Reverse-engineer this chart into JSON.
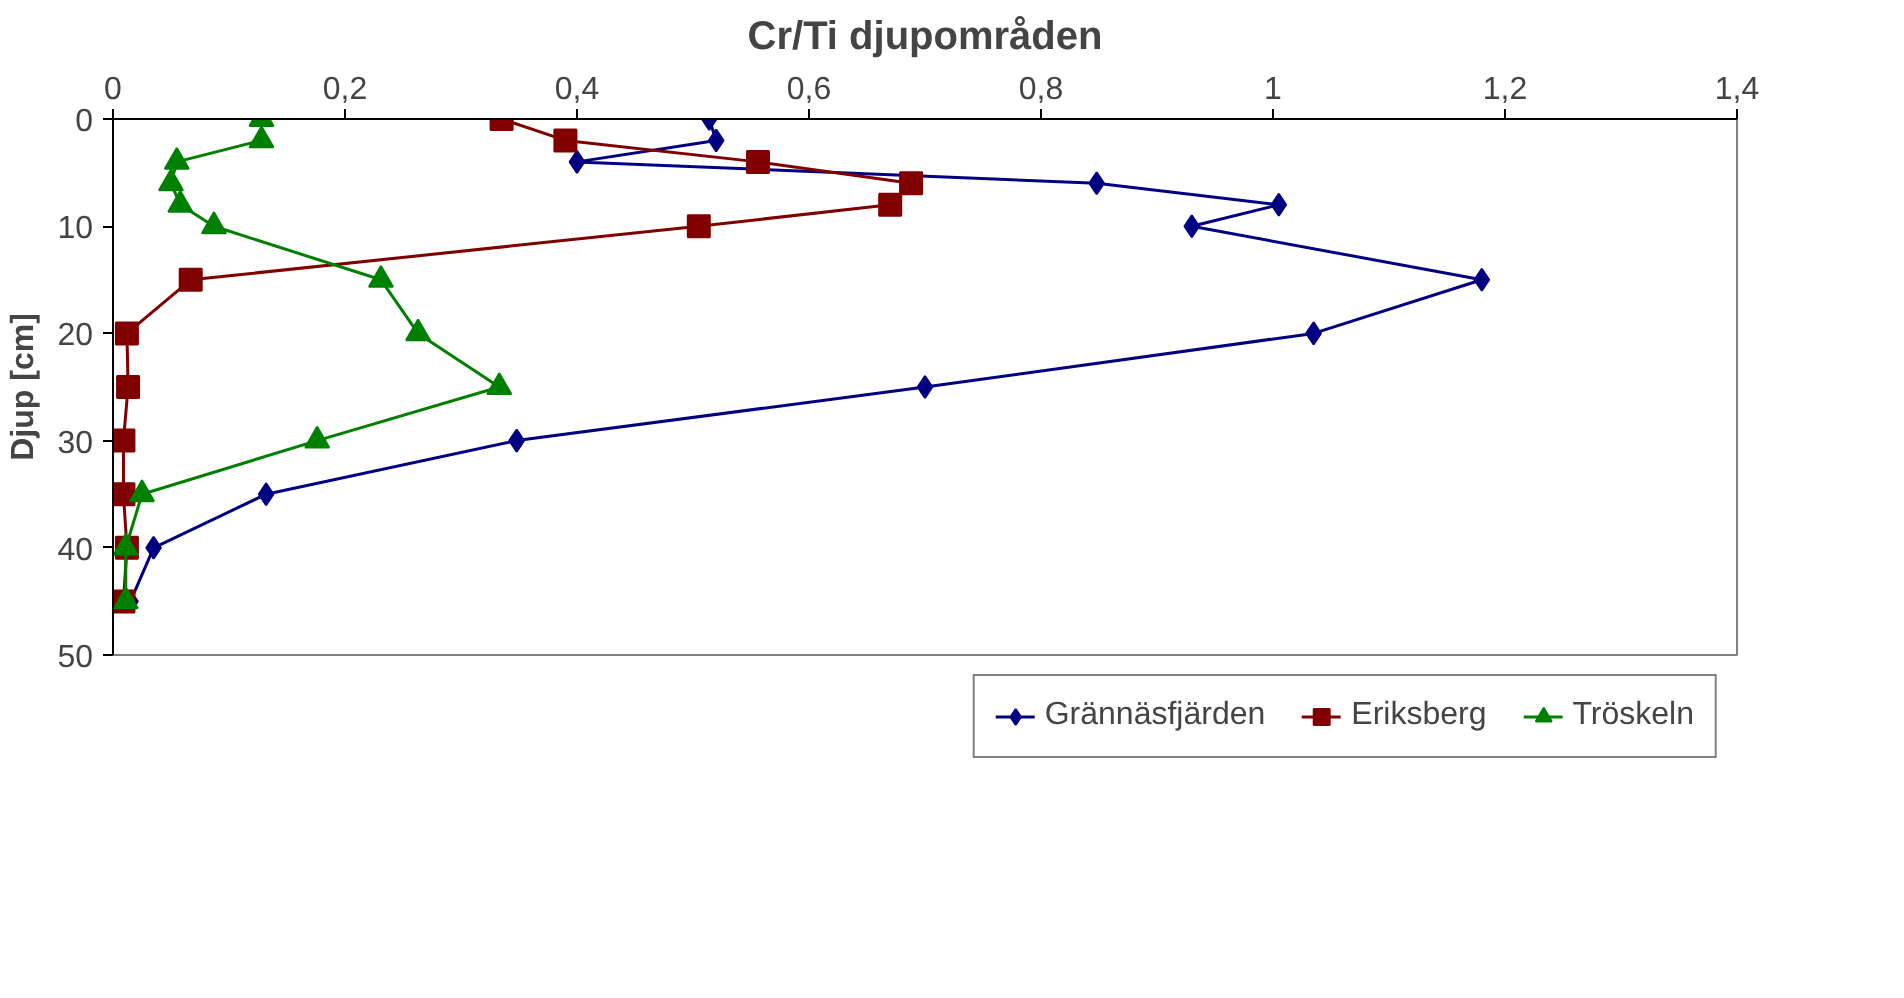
{
  "chart_data": {
    "type": "line",
    "title": "Cr/Ti djupområden",
    "ylabel": "Djup [cm]",
    "series": [
      {
        "name": "Grännäsfjärden",
        "color": "#000080",
        "marker": "diamond",
        "x": [
          0.514,
          0.52,
          0.4,
          0.848,
          1.005,
          0.93,
          1.18,
          1.035,
          0.7,
          0.348,
          0.132,
          0.035,
          0.015
        ],
        "values": [
          0,
          2,
          4,
          6,
          8,
          10,
          15,
          20,
          25,
          30,
          35,
          40,
          45
        ]
      },
      {
        "name": "Eriksberg",
        "color": "#800000",
        "marker": "square",
        "x": [
          0.335,
          0.39,
          0.556,
          0.688,
          0.67,
          0.505,
          0.067,
          0.012,
          0.013,
          0.009,
          0.009,
          0.012,
          0.009
        ],
        "values": [
          0,
          2,
          4,
          6,
          8,
          10,
          15,
          20,
          25,
          30,
          35,
          40,
          45
        ]
      },
      {
        "name": "Tröskeln",
        "color": "#008000",
        "marker": "triangle",
        "x": [
          0.128,
          0.128,
          0.055,
          0.05,
          0.058,
          0.087,
          0.231,
          0.263,
          0.333,
          0.176,
          0.025,
          0.011,
          0.011
        ],
        "values": [
          0,
          2,
          4,
          6,
          8,
          10,
          15,
          20,
          25,
          30,
          35,
          40,
          45
        ]
      }
    ],
    "xlim": [
      0,
      1.4
    ],
    "xticks": [
      {
        "value": 0,
        "label": "0"
      },
      {
        "value": 0.2,
        "label": "0,2"
      },
      {
        "value": 0.4,
        "label": "0,4"
      },
      {
        "value": 0.6,
        "label": "0,6"
      },
      {
        "value": 0.8,
        "label": "0,8"
      },
      {
        "value": 1,
        "label": "1"
      },
      {
        "value": 1.2,
        "label": "1,2"
      },
      {
        "value": 1.4,
        "label": "1,4"
      }
    ],
    "ylim": [
      50,
      0
    ],
    "yticks": [
      0,
      10,
      20,
      30,
      40,
      50
    ],
    "grid": false,
    "legend": "bottom",
    "line_style": "solid"
  }
}
